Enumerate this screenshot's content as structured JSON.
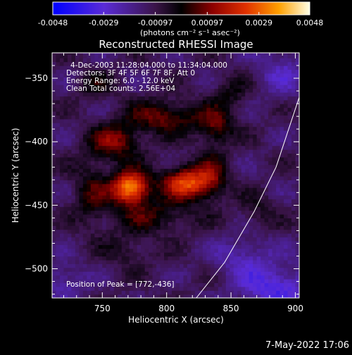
{
  "chart_data": {
    "type": "heatmap",
    "title": "Reconstructed RHESSI Image",
    "xlabel": "Heliocentric X (arcsec)",
    "ylabel": "Heliocentric Y (arcsec)",
    "xlim": [
      711,
      903
    ],
    "ylim": [
      -523,
      -330
    ],
    "x_ticks": [
      750,
      800,
      850,
      900
    ],
    "y_ticks": [
      -350,
      -400,
      -450,
      -500
    ],
    "colorbar": {
      "vmin": -0.0048,
      "vmax": 0.0048,
      "ticks": [
        "-0.0048",
        "-0.0029",
        "-0.00097",
        "0.00097",
        "0.0029",
        "0.0048"
      ],
      "tick_values": [
        -0.0048,
        -0.0029,
        -0.00097,
        0.00097,
        0.0029,
        0.0048
      ],
      "units_label": "(photons cm⁻² s⁻¹ asec⁻²)"
    },
    "info_lines": [
      "4-Dec-2003 11:28:04.000 to 11:34:04.000",
      "Detectors: 3F 4F 5F 6F 7F 8F, Att 0",
      "Energy Range: 6.0 - 12.0 keV",
      "Clean     Total counts: 2.56E+04"
    ],
    "peak_label": "Position of Peak = [772,-436]",
    "peak": [
      772,
      -436
    ],
    "sources": [
      {
        "x": 772,
        "y": -436,
        "amp": 0.0048,
        "sx": 10,
        "sy": 9
      },
      {
        "x": 817,
        "y": -432,
        "amp": 0.0038,
        "sx": 14,
        "sy": 9
      },
      {
        "x": 760,
        "y": -400,
        "amp": 0.0022,
        "sx": 14,
        "sy": 10
      },
      {
        "x": 798,
        "y": -380,
        "amp": 0.002,
        "sx": 20,
        "sy": 9
      },
      {
        "x": 838,
        "y": -388,
        "amp": 0.0018,
        "sx": 10,
        "sy": 10
      },
      {
        "x": 742,
        "y": -440,
        "amp": 0.0014,
        "sx": 10,
        "sy": 18
      },
      {
        "x": 790,
        "y": -458,
        "amp": 0.0014,
        "sx": 22,
        "sy": 9
      },
      {
        "x": 836,
        "y": -425,
        "amp": 0.0012,
        "sx": 8,
        "sy": 14
      },
      {
        "x": 850,
        "y": -362,
        "amp": 0.001,
        "sx": 10,
        "sy": 10
      },
      {
        "x": 745,
        "y": -355,
        "amp": 0.001,
        "sx": 10,
        "sy": 8
      },
      {
        "x": 770,
        "y": -485,
        "amp": 0.0008,
        "sx": 14,
        "sy": 10
      },
      {
        "x": 870,
        "y": -455,
        "amp": 0.0008,
        "sx": 10,
        "sy": 10
      },
      {
        "x": 885,
        "y": -515,
        "amp": -0.002,
        "sx": 20,
        "sy": 12
      },
      {
        "x": 720,
        "y": -510,
        "amp": -0.0012,
        "sx": 12,
        "sy": 10
      },
      {
        "x": 890,
        "y": -345,
        "amp": -0.0012,
        "sx": 14,
        "sy": 14
      },
      {
        "x": 860,
        "y": -490,
        "amp": -0.0012,
        "sx": 16,
        "sy": 12
      }
    ],
    "limb_points": [
      [
        823,
        -523
      ],
      [
        845,
        -495
      ],
      [
        868,
        -455
      ],
      [
        885,
        -420
      ],
      [
        903,
        -365
      ]
    ]
  },
  "footer": {
    "date": "7-May-2022 17:06"
  }
}
